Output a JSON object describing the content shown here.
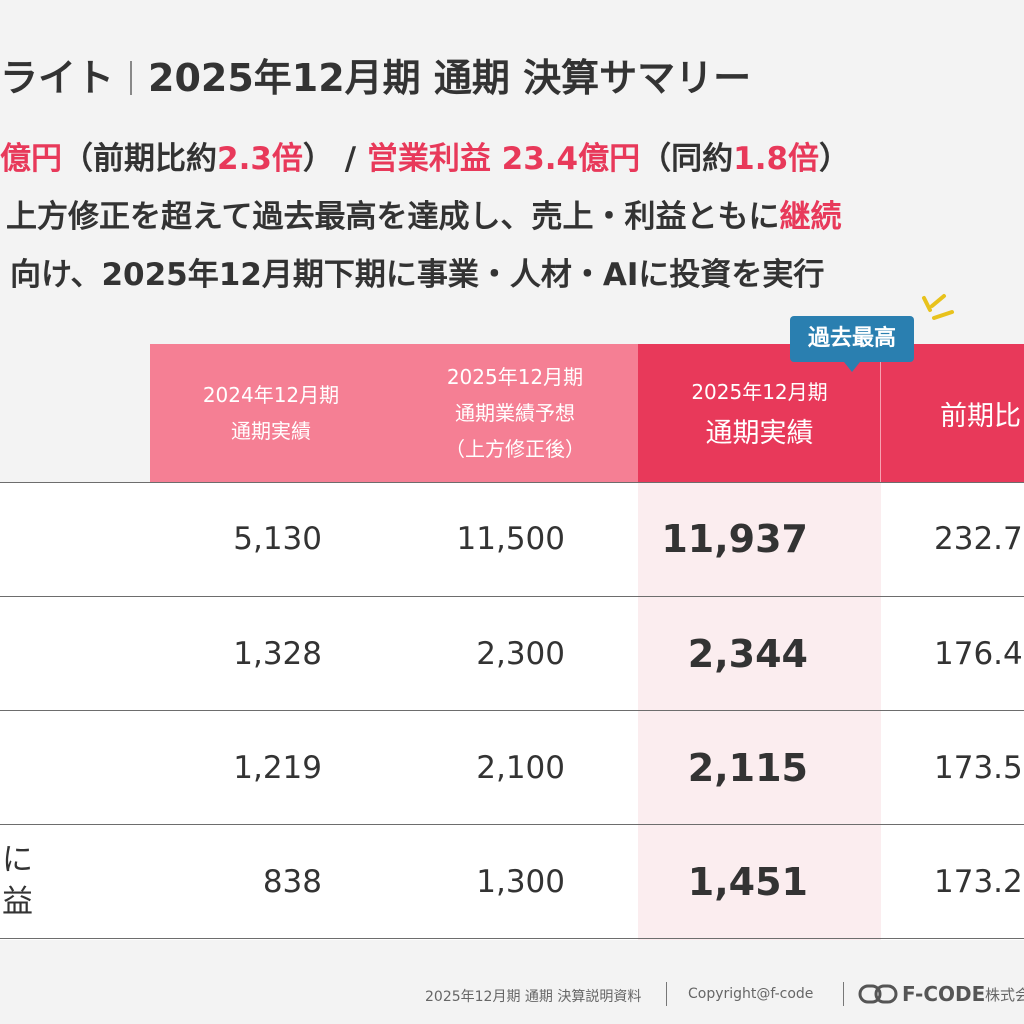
{
  "header": {
    "title_left": "ライト",
    "title_right": "2025年12月期 通期 決算サマリー"
  },
  "summary": {
    "line1": {
      "a": "億円",
      "b": "（前期比約",
      "c": "2.3倍",
      "d": "） / ",
      "e": "営業利益 23.4億円",
      "f": "（同約",
      "g": "1.8倍",
      "h": "）"
    },
    "line2": {
      "a": "上方修正を超えて過去最高を達成し、売上・利益ともに",
      "b": "継続"
    },
    "line3": "向け、2025年12月期下期に事業・人材・AIに投資を実行"
  },
  "badge": "過去最高",
  "table": {
    "headers": {
      "col1": [
        "2024年12月期",
        "通期実績"
      ],
      "col2": [
        "2025年12月期",
        "通期業績予想",
        "（上方修正後）"
      ],
      "col3": [
        "2025年12月期",
        "通期実績"
      ],
      "col4": "前期比"
    },
    "rows": [
      {
        "label": [
          "",
          ""
        ],
        "prev": "5,130",
        "forecast": "11,500",
        "actual": "11,937",
        "yoy": "232.7"
      },
      {
        "label": [
          "",
          ""
        ],
        "prev": "1,328",
        "forecast": "2,300",
        "actual": "2,344",
        "yoy": "176.4"
      },
      {
        "label": [
          "",
          ""
        ],
        "prev": "1,219",
        "forecast": "2,100",
        "actual": "2,115",
        "yoy": "173.5"
      },
      {
        "label": [
          "に",
          "益"
        ],
        "prev": "838",
        "forecast": "1,300",
        "actual": "1,451",
        "yoy": "173.2"
      }
    ]
  },
  "footer": {
    "doc": "2025年12月期 通期 決算説明資料",
    "copyright": "Copyright@f-code",
    "logo": "F-CODE",
    "company": "株式会"
  },
  "colors": {
    "accent": "#e8395a",
    "header_light": "#f57f94",
    "badge": "#2a7fb0",
    "highlight_col": "#fbedef"
  }
}
